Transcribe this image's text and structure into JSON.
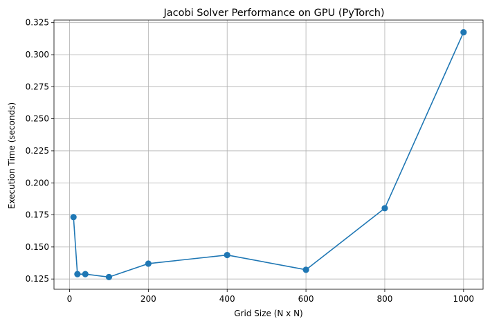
{
  "chart_data": {
    "type": "line",
    "title": "Jacobi Solver Performance on GPU (PyTorch)",
    "xlabel": "Grid Size (N x N)",
    "ylabel": "Execution Time (seconds)",
    "x": [
      10,
      20,
      40,
      100,
      200,
      400,
      600,
      800,
      1000
    ],
    "series": [
      {
        "name": "",
        "values": [
          0.1733,
          0.1288,
          0.1288,
          0.1265,
          0.137,
          0.1437,
          0.1322,
          0.1802,
          0.3175
        ],
        "color": "#1f77b4",
        "marker": "circle"
      }
    ],
    "xlim": [
      -39.5,
      1049.5
    ],
    "ylim": [
      0.117,
      0.327
    ],
    "xticks": [
      0,
      200,
      400,
      600,
      800,
      1000
    ],
    "xtick_labels": [
      "0",
      "200",
      "400",
      "600",
      "800",
      "1000"
    ],
    "yticks": [
      0.125,
      0.15,
      0.175,
      0.2,
      0.225,
      0.25,
      0.275,
      0.3,
      0.325
    ],
    "ytick_labels": [
      "0.125",
      "0.150",
      "0.175",
      "0.200",
      "0.225",
      "0.250",
      "0.275",
      "0.300",
      "0.325"
    ],
    "grid": true,
    "legend": "none"
  }
}
